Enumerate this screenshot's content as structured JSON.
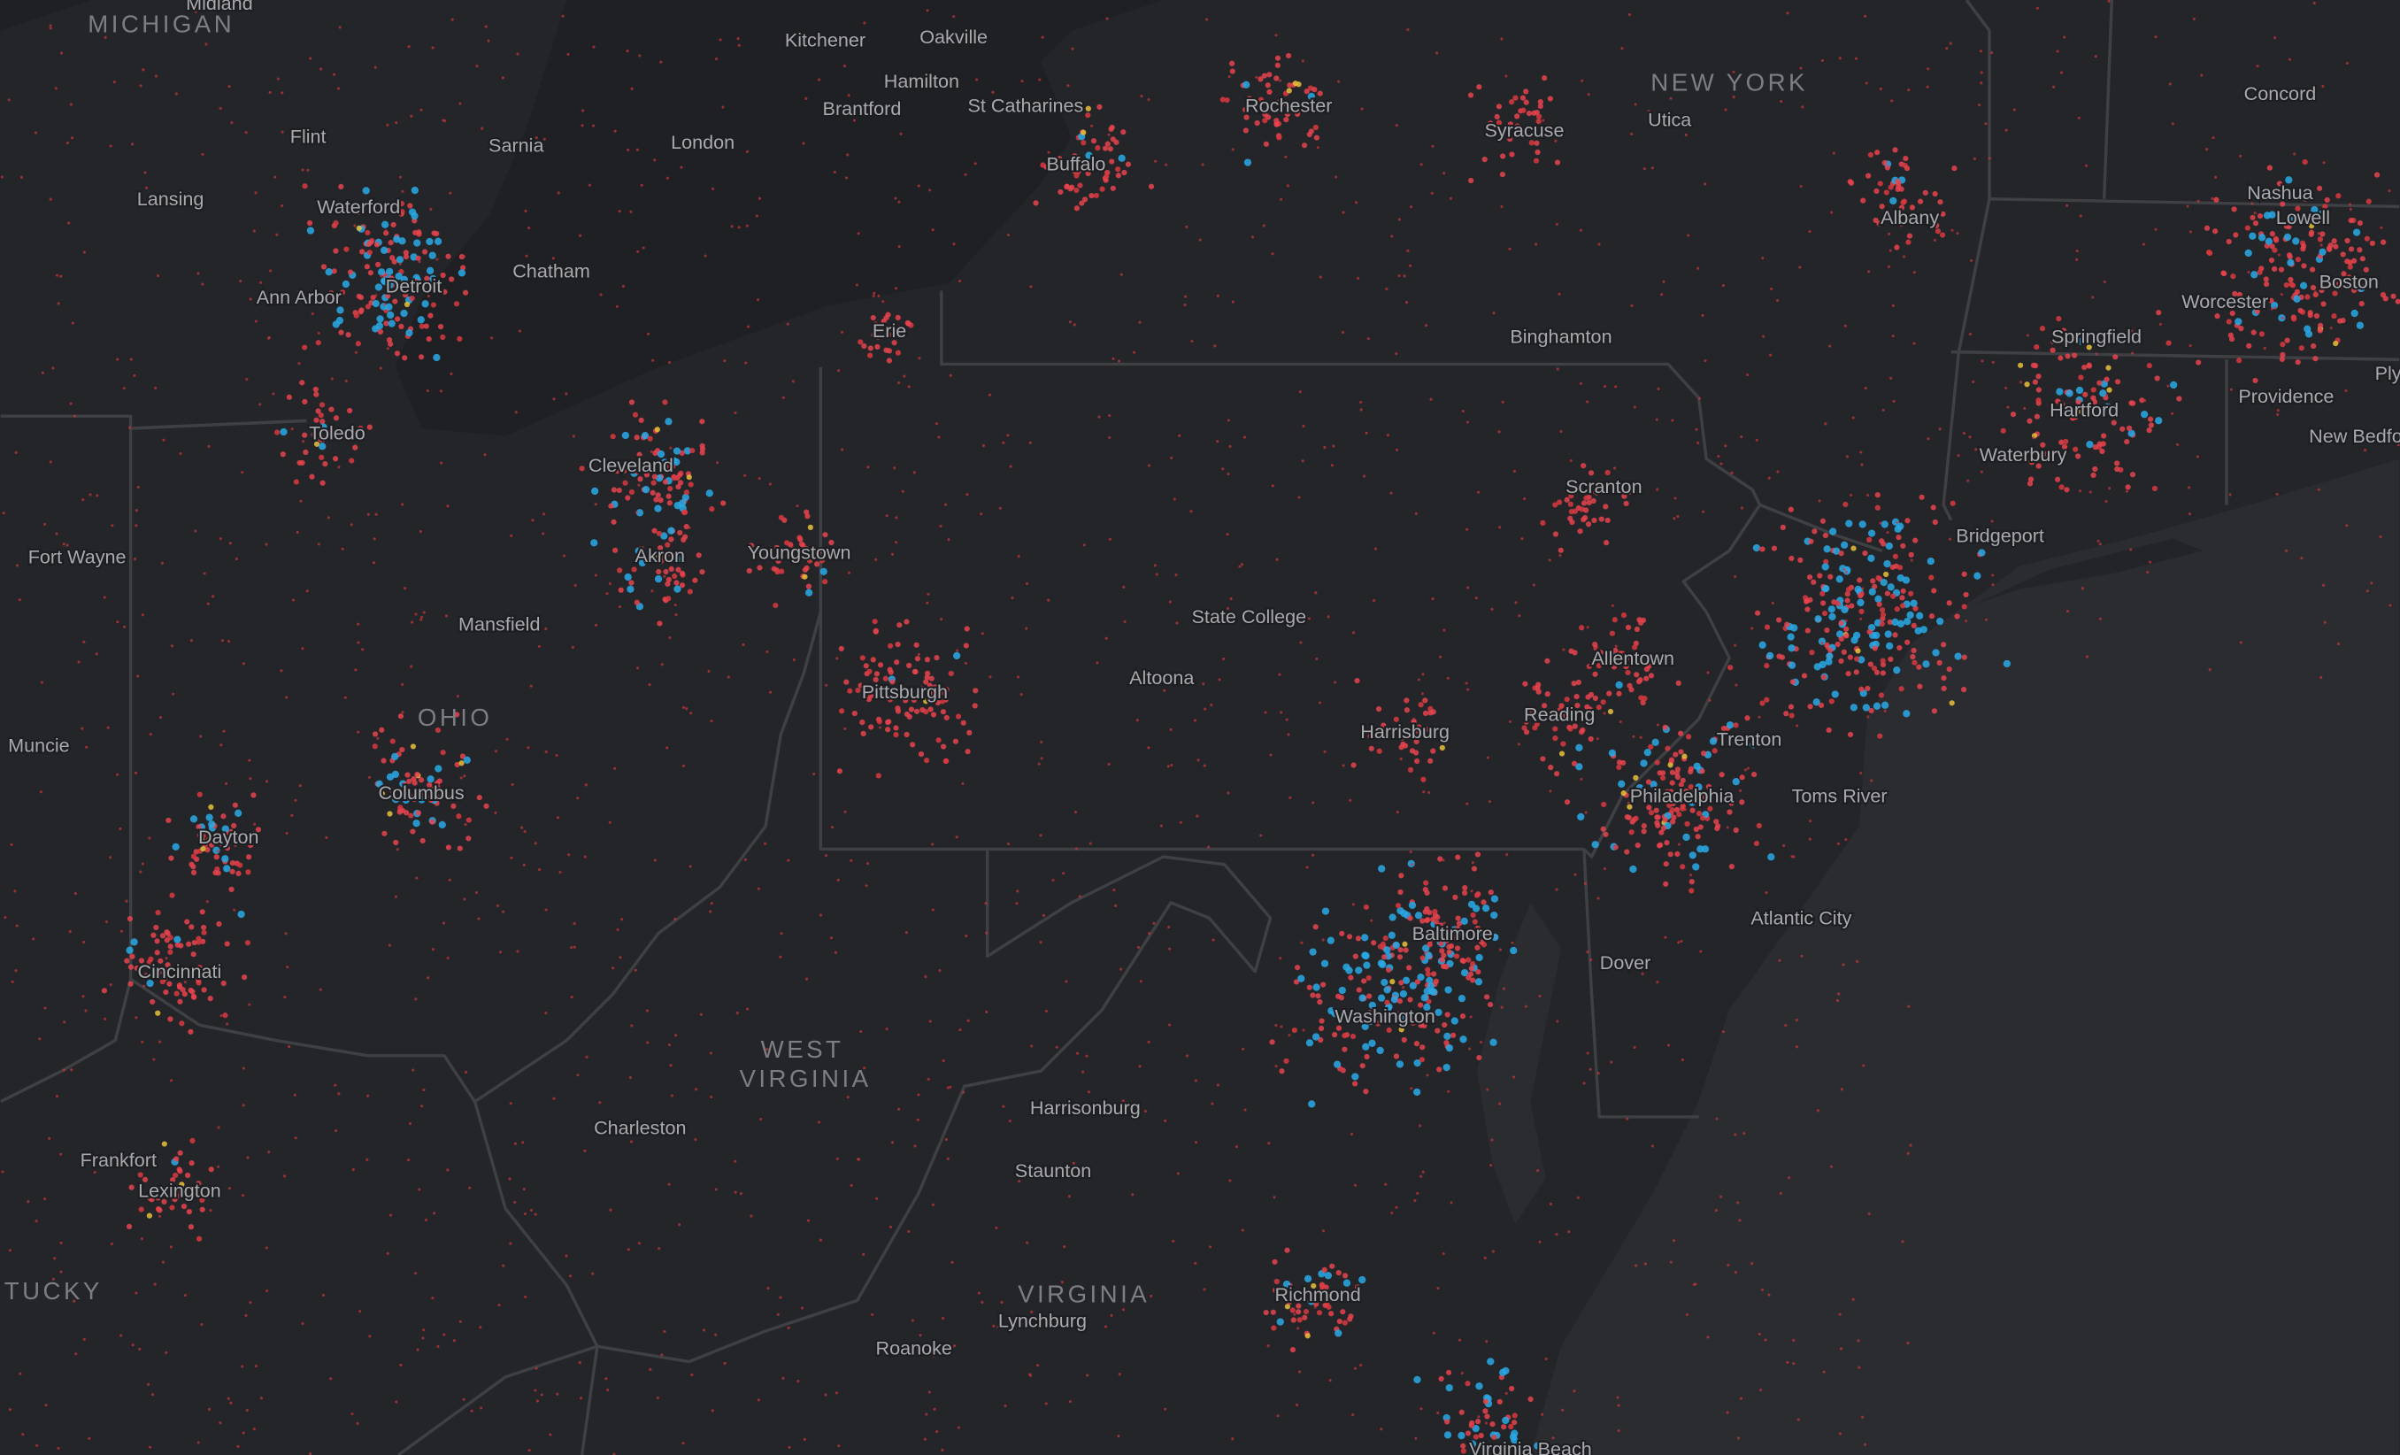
{
  "states": [
    "MICHIGAN",
    "NEW YORK",
    "OHIO",
    "WEST",
    "VIRGINIA",
    "VIRGINIA",
    "KENTUCKY"
  ],
  "cities": [
    "Midland",
    "Kitchener",
    "Oakville",
    "Hamilton",
    "Brantford",
    "St Catharines",
    "Sarnia",
    "London",
    "Flint",
    "Lansing",
    "Waterford",
    "Detroit",
    "Ann Arbor",
    "Chatham",
    "Toledo",
    "Cleveland",
    "Akron",
    "Youngstown",
    "Mansfield",
    "Fort Wayne",
    "Muncie",
    "Columbus",
    "Dayton",
    "Cincinnati",
    "Frankfort",
    "Lexington",
    "Charleston",
    "Pittsburgh",
    "Erie",
    "Buffalo",
    "Rochester",
    "Syracuse",
    "Utica",
    "Albany",
    "Binghamton",
    "Scranton",
    "State College",
    "Altoona",
    "Allentown",
    "Reading",
    "Harrisburg",
    "Trenton",
    "Philadelphia",
    "Toms River",
    "Atlantic City",
    "Dover",
    "Baltimore",
    "Washington",
    "Harrisonburg",
    "Staunton",
    "Lynchburg",
    "Roanoke",
    "Richmond",
    "Virginia Beach",
    "Concord",
    "Nashua",
    "Lowell",
    "Boston",
    "Worcester",
    "Springfield",
    "Hartford",
    "Providence",
    "Waterbury",
    "New Bedford",
    "Bridgeport",
    "Plymouth"
  ]
}
